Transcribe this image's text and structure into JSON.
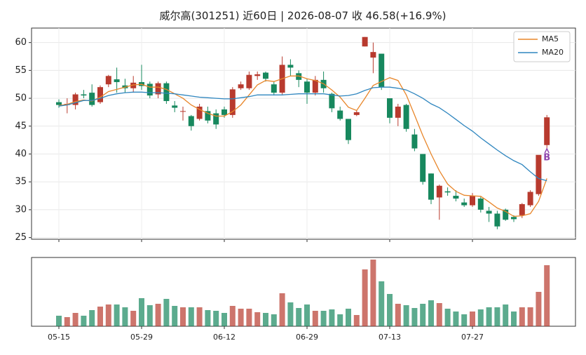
{
  "chart_data": {
    "type": "candlestick",
    "title": "威尔高(301251) 近60日  |  2026-08-07 收 46.58(+16.9%)",
    "categories": [
      "05-15",
      null,
      null,
      null,
      null,
      null,
      null,
      null,
      null,
      null,
      "05-29",
      null,
      null,
      null,
      null,
      null,
      null,
      null,
      null,
      null,
      "06-12",
      null,
      null,
      null,
      null,
      null,
      null,
      null,
      null,
      null,
      "06-29",
      null,
      null,
      null,
      null,
      null,
      null,
      null,
      null,
      null,
      "07-13",
      null,
      null,
      null,
      null,
      null,
      null,
      null,
      null,
      null,
      "07-27",
      null,
      null,
      null,
      null,
      null,
      null,
      null,
      null,
      null
    ],
    "open": [
      49.3,
      48.8,
      48.8,
      50.7,
      51.0,
      49.3,
      52.5,
      53.4,
      52.3,
      51.8,
      52.9,
      52.6,
      50.7,
      52.7,
      48.7,
      47.6,
      46.8,
      46.3,
      47.7,
      47.3,
      48.0,
      47.0,
      51.8,
      51.8,
      54.0,
      54.6,
      52.5,
      51.0,
      56.0,
      54.5,
      53.0,
      51.0,
      53.3,
      50.8,
      47.8,
      46.3,
      47.0,
      59.3,
      57.3,
      58.0,
      50.0,
      46.5,
      48.8,
      43.5,
      40.0,
      36.5,
      32.2,
      33.3,
      32.5,
      31.3,
      30.8,
      32.0,
      29.8,
      29.3,
      30.0,
      28.7,
      29.0,
      30.8,
      32.8,
      41.6
    ],
    "high": [
      49.8,
      50.0,
      51.0,
      51.5,
      52.5,
      52.3,
      54.2,
      55.5,
      53.5,
      54.0,
      56.0,
      53.0,
      53.0,
      53.0,
      49.5,
      48.5,
      47.0,
      49.0,
      48.5,
      48.0,
      48.5,
      52.0,
      53.0,
      54.8,
      54.8,
      54.8,
      53.0,
      57.5,
      57.0,
      55.0,
      53.5,
      54.0,
      54.8,
      51.0,
      48.5,
      46.3,
      47.8,
      61.0,
      60.0,
      58.0,
      50.0,
      49.0,
      49.0,
      44.5,
      40.0,
      36.5,
      34.5,
      34.0,
      33.5,
      32.0,
      33.0,
      32.3,
      30.5,
      29.8,
      30.2,
      29.0,
      31.2,
      33.5,
      39.8,
      47.0
    ],
    "low": [
      48.3,
      47.3,
      48.0,
      50.0,
      48.5,
      49.0,
      52.0,
      51.0,
      51.0,
      51.0,
      51.5,
      50.0,
      50.0,
      49.0,
      47.5,
      46.0,
      44.2,
      46.0,
      45.5,
      44.5,
      46.5,
      46.5,
      51.5,
      51.5,
      53.3,
      53.0,
      50.5,
      50.7,
      54.0,
      52.0,
      49.0,
      50.5,
      51.0,
      47.5,
      46.0,
      41.8,
      46.8,
      59.3,
      54.5,
      51.5,
      45.5,
      45.0,
      44.0,
      40.5,
      34.5,
      31.0,
      28.2,
      32.5,
      31.5,
      30.5,
      30.5,
      29.5,
      27.8,
      26.5,
      28.0,
      27.8,
      28.5,
      30.5,
      32.5,
      40.8
    ],
    "close": [
      48.8,
      49.0,
      50.7,
      50.5,
      48.8,
      52.0,
      54.0,
      52.9,
      51.8,
      52.8,
      52.2,
      50.5,
      52.7,
      49.5,
      48.3,
      47.7,
      45.0,
      48.5,
      46.0,
      45.3,
      47.0,
      51.6,
      52.5,
      54.2,
      54.3,
      53.5,
      51.0,
      56.0,
      55.5,
      53.3,
      51.0,
      53.3,
      51.8,
      48.2,
      46.3,
      42.5,
      47.5,
      61.0,
      58.3,
      52.0,
      46.5,
      48.5,
      44.5,
      41.0,
      35.0,
      31.8,
      34.3,
      33.1,
      32.0,
      30.8,
      32.5,
      30.0,
      29.3,
      27.0,
      28.2,
      28.3,
      31.0,
      33.2,
      39.84,
      46.58
    ],
    "volume": [
      15,
      13,
      19,
      15,
      23,
      28,
      31,
      31,
      27,
      22,
      40,
      30,
      32,
      39,
      29,
      27,
      27,
      27,
      23,
      22,
      19,
      29,
      25,
      25,
      20,
      19,
      17,
      47,
      34,
      26,
      31,
      22,
      22,
      24,
      17,
      25,
      16,
      81,
      95,
      64,
      46,
      32,
      30,
      26,
      32,
      37,
      33,
      25,
      21,
      17,
      21,
      24,
      27,
      27,
      31,
      21,
      27,
      27,
      49,
      87
    ],
    "up_color": "#b83a2e",
    "down_color": "#17885e",
    "series": [
      {
        "name": "MA5",
        "color": "#e8862a",
        "values": [
          48.7,
          48.9,
          49.4,
          49.7,
          49.5,
          50.2,
          51.2,
          51.6,
          52.0,
          52.4,
          52.5,
          52.0,
          52.0,
          51.6,
          50.8,
          50.0,
          48.8,
          48.0,
          47.3,
          46.8,
          46.8,
          47.6,
          48.8,
          50.6,
          52.4,
          53.2,
          53.0,
          53.5,
          54.0,
          54.0,
          53.5,
          53.2,
          52.6,
          51.5,
          50.2,
          48.4,
          47.8,
          50.0,
          52.3,
          53.0,
          53.7,
          53.2,
          50.6,
          47.0,
          43.3,
          40.0,
          37.0,
          34.6,
          33.3,
          32.6,
          32.5,
          32.4,
          31.4,
          30.3,
          29.7,
          28.8,
          28.9,
          29.3,
          31.5,
          35.6
        ]
      },
      {
        "name": "MA20",
        "color": "#2f86bf",
        "values": [
          48.6,
          48.8,
          49.2,
          49.6,
          49.6,
          50.0,
          50.5,
          50.8,
          51.0,
          51.1,
          51.1,
          51.0,
          51.0,
          50.9,
          50.8,
          50.6,
          50.4,
          50.2,
          50.1,
          50.0,
          49.9,
          49.9,
          50.1,
          50.3,
          50.6,
          50.6,
          50.6,
          50.6,
          50.7,
          50.8,
          50.8,
          50.8,
          50.8,
          50.6,
          50.4,
          50.5,
          50.8,
          51.4,
          51.9,
          52.0,
          52.0,
          51.8,
          51.5,
          50.8,
          50.0,
          49.0,
          48.3,
          47.3,
          46.2,
          45.1,
          44.1,
          42.9,
          41.8,
          40.7,
          39.7,
          38.8,
          38.1,
          36.8,
          35.6,
          35.2
        ]
      }
    ],
    "annotations": [
      {
        "text": "B",
        "category_index": 59,
        "value": 39.3,
        "color": "#8e44ad"
      }
    ],
    "ylim": [
      24.7,
      62.6
    ],
    "yticks": [
      25,
      30,
      35,
      40,
      45,
      50,
      55,
      60
    ],
    "volume_ylim": [
      0,
      98
    ],
    "grid": true,
    "legend": "upper right"
  }
}
